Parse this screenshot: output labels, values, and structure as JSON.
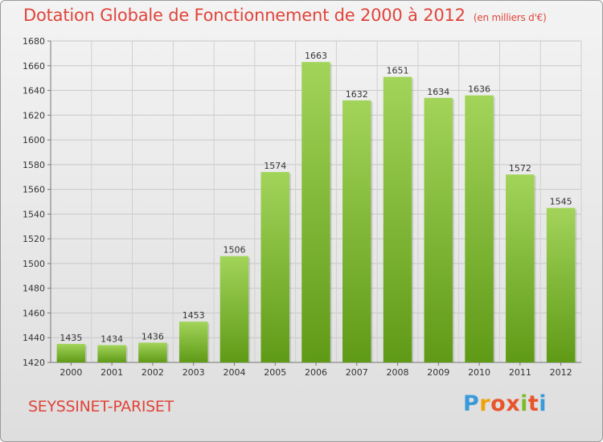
{
  "header": {
    "title": "Dotation Globale de Fonctionnement de 2000 à 2012",
    "unit": "(en milliers d'€)"
  },
  "footer": {
    "commune": "SEYSSINET-PARISET",
    "logo_letters": [
      "P",
      "r",
      "o",
      "x",
      "i",
      "t",
      "i"
    ],
    "logo_colors": [
      "#3a9ad9",
      "#f0a20a",
      "#e8542c",
      "#e8542c",
      "#7dbb2a",
      "#e8542c",
      "#3a9ad9"
    ]
  },
  "chart_data": {
    "type": "bar",
    "title": "Dotation Globale de Fonctionnement de 2000 à 2012",
    "xlabel": "",
    "ylabel": "",
    "categories": [
      "2000",
      "2001",
      "2002",
      "2003",
      "2004",
      "2005",
      "2006",
      "2007",
      "2008",
      "2009",
      "2010",
      "2011",
      "2012"
    ],
    "values": [
      1435,
      1434,
      1436,
      1453,
      1506,
      1574,
      1663,
      1632,
      1651,
      1634,
      1636,
      1572,
      1545
    ],
    "ylim": [
      1420,
      1680
    ],
    "yticks": [
      1420,
      1440,
      1460,
      1480,
      1500,
      1520,
      1540,
      1560,
      1580,
      1600,
      1620,
      1640,
      1660,
      1680
    ],
    "grid": true,
    "bar_color_top": "#a2d45a",
    "bar_color_bottom": "#5f9a16"
  }
}
